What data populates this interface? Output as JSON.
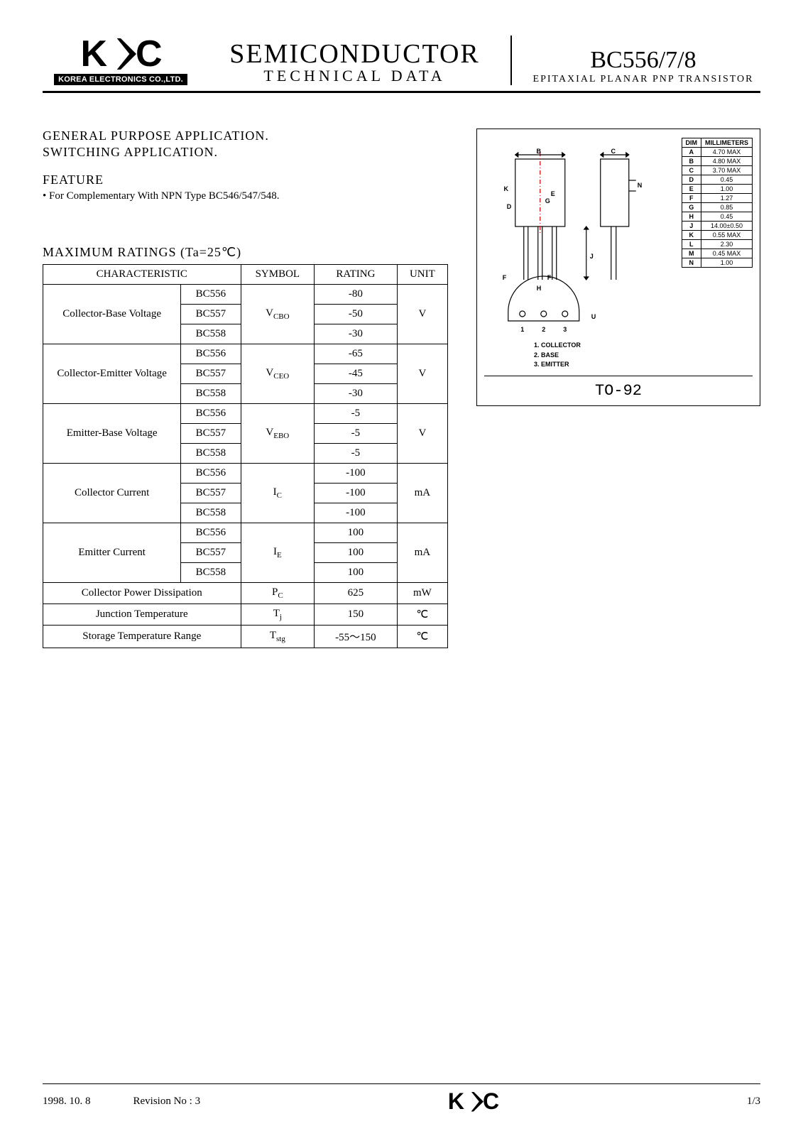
{
  "header": {
    "logo_text_k": "K",
    "logo_text_ec": "C",
    "logo_subtext": "KOREA ELECTRONICS CO.,LTD.",
    "center_title": "SEMICONDUCTOR",
    "center_sub": "TECHNICAL  DATA",
    "right_title": "BC556/7/8",
    "right_sub": "EPITAXIAL  PLANAR  PNP  TRANSISTOR"
  },
  "applications": {
    "line1": "GENERAL  PURPOSE  APPLICATION.",
    "line2": "SWITCHING  APPLICATION."
  },
  "feature": {
    "title": "FEATURE",
    "bullet": "• For  Complementary  With  NPN  Type  BC546/547/548."
  },
  "ratings": {
    "title": "MAXIMUM  RATINGS  (Ta=25℃)",
    "headers": {
      "char": "CHARACTERISTIC",
      "symbol": "SYMBOL",
      "rating": "RATING",
      "unit": "UNIT"
    },
    "rows": [
      {
        "char": "Collector-Base Voltage",
        "parts": [
          "BC556",
          "BC557",
          "BC558"
        ],
        "symbol": "V",
        "symbol_sub": "CBO",
        "values": [
          "-80",
          "-50",
          "-30"
        ],
        "unit": "V"
      },
      {
        "char": "Collector-Emitter Voltage",
        "parts": [
          "BC556",
          "BC557",
          "BC558"
        ],
        "symbol": "V",
        "symbol_sub": "CEO",
        "values": [
          "-65",
          "-45",
          "-30"
        ],
        "unit": "V"
      },
      {
        "char": "Emitter-Base Voltage",
        "parts": [
          "BC556",
          "BC557",
          "BC558"
        ],
        "symbol": "V",
        "symbol_sub": "EBO",
        "values": [
          "-5",
          "-5",
          "-5"
        ],
        "unit": "V"
      },
      {
        "char": "Collector  Current",
        "parts": [
          "BC556",
          "BC557",
          "BC558"
        ],
        "symbol": "I",
        "symbol_sub": "C",
        "values": [
          "-100",
          "-100",
          "-100"
        ],
        "unit": "mA"
      },
      {
        "char": "Emitter  Current",
        "parts": [
          "BC556",
          "BC557",
          "BC558"
        ],
        "symbol": "I",
        "symbol_sub": "E",
        "values": [
          "100",
          "100",
          "100"
        ],
        "unit": "mA"
      }
    ],
    "single_rows": [
      {
        "char": "Collector  Power  Dissipation",
        "symbol": "P",
        "symbol_sub": "C",
        "value": "625",
        "unit": "mW"
      },
      {
        "char": "Junction  Temperature",
        "symbol": "T",
        "symbol_sub": "j",
        "value": "150",
        "unit": "℃"
      },
      {
        "char": "Storage  Temperature Range",
        "symbol": "T",
        "symbol_sub": "stg",
        "value": "-55～150",
        "unit": "℃"
      }
    ]
  },
  "package": {
    "dim_header": {
      "dim": "DIM",
      "mm": "MILLIMETERS"
    },
    "dims": [
      {
        "d": "A",
        "v": "4.70 MAX"
      },
      {
        "d": "B",
        "v": "4.80 MAX"
      },
      {
        "d": "C",
        "v": "3.70 MAX"
      },
      {
        "d": "D",
        "v": "0.45"
      },
      {
        "d": "E",
        "v": "1.00"
      },
      {
        "d": "F",
        "v": "1.27"
      },
      {
        "d": "G",
        "v": "0.85"
      },
      {
        "d": "H",
        "v": "0.45"
      },
      {
        "d": "J",
        "v": "14.00±0.50"
      },
      {
        "d": "K",
        "v": "0.55 MAX"
      },
      {
        "d": "L",
        "v": "2.30"
      },
      {
        "d": "M",
        "v": "0.45 MAX"
      },
      {
        "d": "N",
        "v": "1.00"
      }
    ],
    "pins": {
      "p1": "1. COLLECTOR",
      "p2": "2. BASE",
      "p3": "3. EMITTER"
    },
    "outline_label": "TO-92",
    "drawing_labels": {
      "B": "B",
      "C": "C",
      "K": "K",
      "E": "E",
      "G": "G",
      "D": "D",
      "H": "H",
      "F": "F",
      "N": "N",
      "J": "J",
      "U": "U",
      "n1": "1",
      "n2": "2",
      "n3": "3"
    }
  },
  "footer": {
    "date": "1998. 10. 8",
    "revision": "Revision No : 3",
    "page": "1/3"
  },
  "colors": {
    "text": "#000000",
    "bg": "#ffffff",
    "centerline": "#cc0000"
  }
}
